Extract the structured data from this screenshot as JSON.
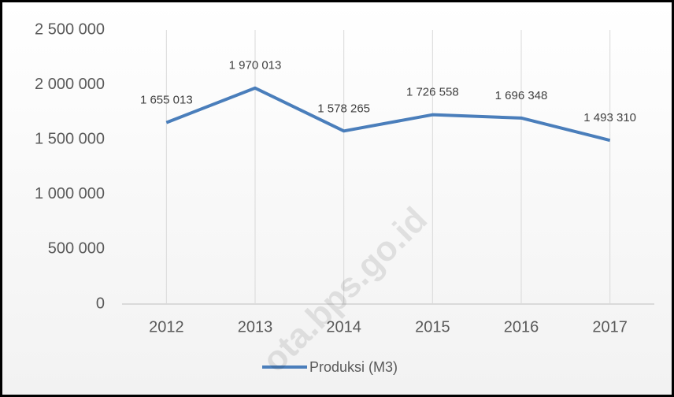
{
  "chart_data": {
    "type": "line",
    "categories": [
      "2012",
      "2013",
      "2014",
      "2015",
      "2016",
      "2017"
    ],
    "series": [
      {
        "name": "Produksi (M3)",
        "color": "#4a7ebb",
        "values": [
          1655013,
          1970013,
          1578265,
          1726558,
          1696348,
          1493310
        ],
        "value_labels": [
          "1 655 013",
          "1 970 013",
          "1 578 265",
          "1 726 558",
          "1 696 348",
          "1 493 310"
        ]
      }
    ],
    "ylim": [
      0,
      2500000
    ],
    "yticks": [
      0,
      {
        "value": 500000,
        "label": "500 000"
      },
      {
        "value": 1000000,
        "label": "1 000 000"
      },
      {
        "value": 1500000,
        "label": "1 500 000"
      },
      {
        "value": 2000000,
        "label": "2 000 000"
      },
      {
        "value": 2500000,
        "label": "2 500 000"
      }
    ],
    "grid": true,
    "legend": "bottom",
    "watermark": "ota.bps.go.id"
  }
}
